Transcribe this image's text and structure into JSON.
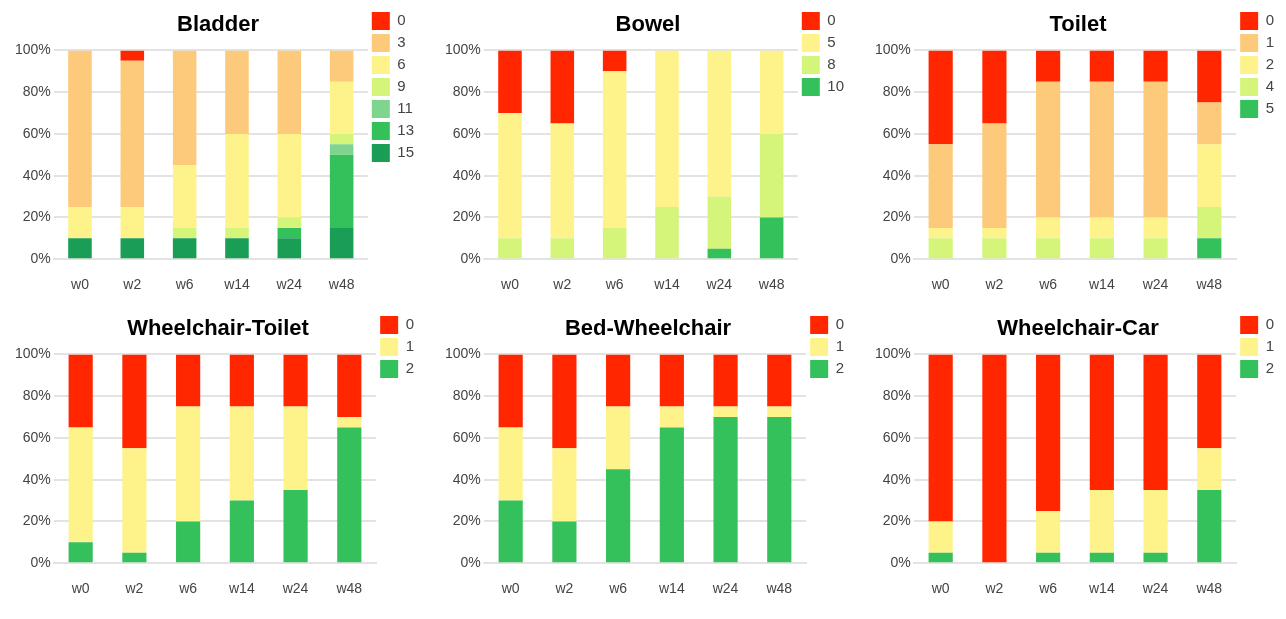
{
  "chart_data": [
    {
      "type": "bar",
      "title": "Bladder",
      "categories": [
        "w0",
        "w2",
        "w6",
        "w14",
        "w24",
        "w48"
      ],
      "stacked": true,
      "ylim": [
        0,
        100
      ],
      "yticks": [
        {
          "value": 0,
          "label": "0%"
        },
        {
          "value": 20,
          "label": "20%"
        },
        {
          "value": 40,
          "label": "40%"
        },
        {
          "value": 60,
          "label": "60%"
        },
        {
          "value": 80,
          "label": "80%"
        },
        {
          "value": 100,
          "label": "100%"
        }
      ],
      "grid": "y",
      "legend": "right",
      "series": [
        {
          "name": "15",
          "color": "#1a9e55",
          "values": [
            10,
            10,
            10,
            10,
            10,
            15
          ]
        },
        {
          "name": "13",
          "color": "#34c05a",
          "values": [
            0,
            0,
            0,
            0,
            5,
            35
          ]
        },
        {
          "name": "11",
          "color": "#7fd48e",
          "values": [
            0,
            0,
            0,
            0,
            0,
            5
          ]
        },
        {
          "name": "9",
          "color": "#d4f57a",
          "values": [
            0,
            0,
            5,
            5,
            5,
            5
          ]
        },
        {
          "name": "6",
          "color": "#fdf38a",
          "values": [
            15,
            15,
            30,
            45,
            40,
            25
          ]
        },
        {
          "name": "3",
          "color": "#fdc97a",
          "values": [
            75,
            70,
            55,
            40,
            40,
            15
          ]
        },
        {
          "name": "0",
          "color": "#ff2600",
          "values": [
            0,
            5,
            0,
            0,
            0,
            0
          ]
        }
      ]
    },
    {
      "type": "bar",
      "title": "Bowel",
      "categories": [
        "w0",
        "w2",
        "w6",
        "w14",
        "w24",
        "w48"
      ],
      "stacked": true,
      "ylim": [
        0,
        100
      ],
      "yticks": [
        {
          "value": 0,
          "label": "0%"
        },
        {
          "value": 20,
          "label": "20%"
        },
        {
          "value": 40,
          "label": "40%"
        },
        {
          "value": 60,
          "label": "60%"
        },
        {
          "value": 80,
          "label": "80%"
        },
        {
          "value": 100,
          "label": "100%"
        }
      ],
      "grid": "y",
      "legend": "right",
      "series": [
        {
          "name": "10",
          "color": "#34c05a",
          "values": [
            0,
            0,
            0,
            0,
            5,
            20
          ]
        },
        {
          "name": "8",
          "color": "#d4f57a",
          "values": [
            10,
            10,
            15,
            25,
            25,
            40
          ]
        },
        {
          "name": "5",
          "color": "#fdf38a",
          "values": [
            60,
            55,
            75,
            75,
            70,
            40
          ]
        },
        {
          "name": "0",
          "color": "#ff2600",
          "values": [
            30,
            35,
            10,
            0,
            0,
            0
          ]
        }
      ]
    },
    {
      "type": "bar",
      "title": "Toilet",
      "categories": [
        "w0",
        "w2",
        "w6",
        "w14",
        "w24",
        "w48"
      ],
      "stacked": true,
      "ylim": [
        0,
        100
      ],
      "yticks": [
        {
          "value": 0,
          "label": "0%"
        },
        {
          "value": 20,
          "label": "20%"
        },
        {
          "value": 40,
          "label": "40%"
        },
        {
          "value": 60,
          "label": "60%"
        },
        {
          "value": 80,
          "label": "80%"
        },
        {
          "value": 100,
          "label": "100%"
        }
      ],
      "grid": "y",
      "legend": "right",
      "series": [
        {
          "name": "5",
          "color": "#34c05a",
          "values": [
            0,
            0,
            0,
            0,
            0,
            10
          ]
        },
        {
          "name": "4",
          "color": "#d4f57a",
          "values": [
            10,
            10,
            10,
            10,
            10,
            15
          ]
        },
        {
          "name": "2",
          "color": "#fdf38a",
          "values": [
            5,
            5,
            10,
            10,
            10,
            30
          ]
        },
        {
          "name": "1",
          "color": "#fdc97a",
          "values": [
            40,
            50,
            65,
            65,
            65,
            20
          ]
        },
        {
          "name": "0",
          "color": "#ff2600",
          "values": [
            45,
            35,
            15,
            15,
            15,
            25
          ]
        }
      ]
    },
    {
      "type": "bar",
      "title": "Wheelchair-Toilet",
      "categories": [
        "w0",
        "w2",
        "w6",
        "w14",
        "w24",
        "w48"
      ],
      "stacked": true,
      "ylim": [
        0,
        100
      ],
      "yticks": [
        {
          "value": 0,
          "label": "0%"
        },
        {
          "value": 20,
          "label": "20%"
        },
        {
          "value": 40,
          "label": "40%"
        },
        {
          "value": 60,
          "label": "60%"
        },
        {
          "value": 80,
          "label": "80%"
        },
        {
          "value": 100,
          "label": "100%"
        }
      ],
      "grid": "y",
      "legend": "right",
      "series": [
        {
          "name": "2",
          "color": "#34c05a",
          "values": [
            10,
            5,
            20,
            30,
            35,
            65
          ]
        },
        {
          "name": "1",
          "color": "#fdf38a",
          "values": [
            55,
            50,
            55,
            45,
            40,
            5
          ]
        },
        {
          "name": "0",
          "color": "#ff2600",
          "values": [
            35,
            45,
            25,
            25,
            25,
            30
          ]
        }
      ]
    },
    {
      "type": "bar",
      "title": "Bed-Wheelchair",
      "categories": [
        "w0",
        "w2",
        "w6",
        "w14",
        "w24",
        "w48"
      ],
      "stacked": true,
      "ylim": [
        0,
        100
      ],
      "yticks": [
        {
          "value": 0,
          "label": "0%"
        },
        {
          "value": 20,
          "label": "20%"
        },
        {
          "value": 40,
          "label": "40%"
        },
        {
          "value": 60,
          "label": "60%"
        },
        {
          "value": 80,
          "label": "80%"
        },
        {
          "value": 100,
          "label": "100%"
        }
      ],
      "grid": "y",
      "legend": "right",
      "series": [
        {
          "name": "2",
          "color": "#34c05a",
          "values": [
            30,
            20,
            45,
            65,
            70,
            70
          ]
        },
        {
          "name": "1",
          "color": "#fdf38a",
          "values": [
            35,
            35,
            30,
            10,
            5,
            5
          ]
        },
        {
          "name": "0",
          "color": "#ff2600",
          "values": [
            35,
            45,
            25,
            25,
            25,
            25
          ]
        }
      ]
    },
    {
      "type": "bar",
      "title": "Wheelchair-Car",
      "categories": [
        "w0",
        "w2",
        "w6",
        "w14",
        "w24",
        "w48"
      ],
      "stacked": true,
      "ylim": [
        0,
        100
      ],
      "yticks": [
        {
          "value": 0,
          "label": "0%"
        },
        {
          "value": 20,
          "label": "20%"
        },
        {
          "value": 40,
          "label": "40%"
        },
        {
          "value": 60,
          "label": "60%"
        },
        {
          "value": 80,
          "label": "80%"
        },
        {
          "value": 100,
          "label": "100%"
        }
      ],
      "grid": "y",
      "legend": "right",
      "series": [
        {
          "name": "2",
          "color": "#34c05a",
          "values": [
            5,
            0,
            5,
            5,
            5,
            35
          ]
        },
        {
          "name": "1",
          "color": "#fdf38a",
          "values": [
            15,
            0,
            20,
            30,
            30,
            20
          ]
        },
        {
          "name": "0",
          "color": "#ff2600",
          "values": [
            80,
            100,
            75,
            65,
            65,
            45
          ]
        }
      ]
    }
  ]
}
